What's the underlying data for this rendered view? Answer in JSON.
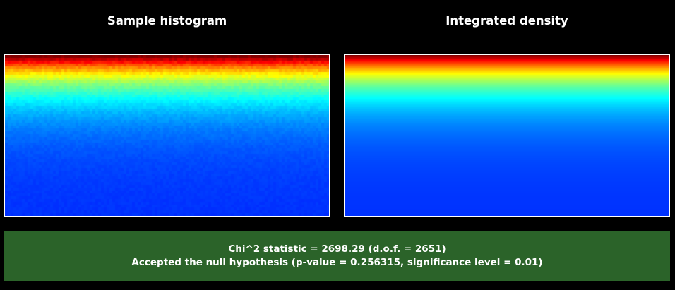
{
  "panels": {
    "left": {
      "title": "Sample histogram",
      "kind": "sample-histogram"
    },
    "right": {
      "title": "Integrated density",
      "kind": "integrated-density"
    }
  },
  "colormap": "jet",
  "result": {
    "statistic_line": "Chi^2 statistic = 2698.29 (d.o.f. = 2651)",
    "decision_line": "Accepted the null hypothesis (p-value = 0.256315, significance level = 0.01)"
  },
  "colors": {
    "background": "#000000",
    "panel_frame": "#ffffff",
    "result_box": "#2b6329",
    "text": "#ffffff"
  }
}
